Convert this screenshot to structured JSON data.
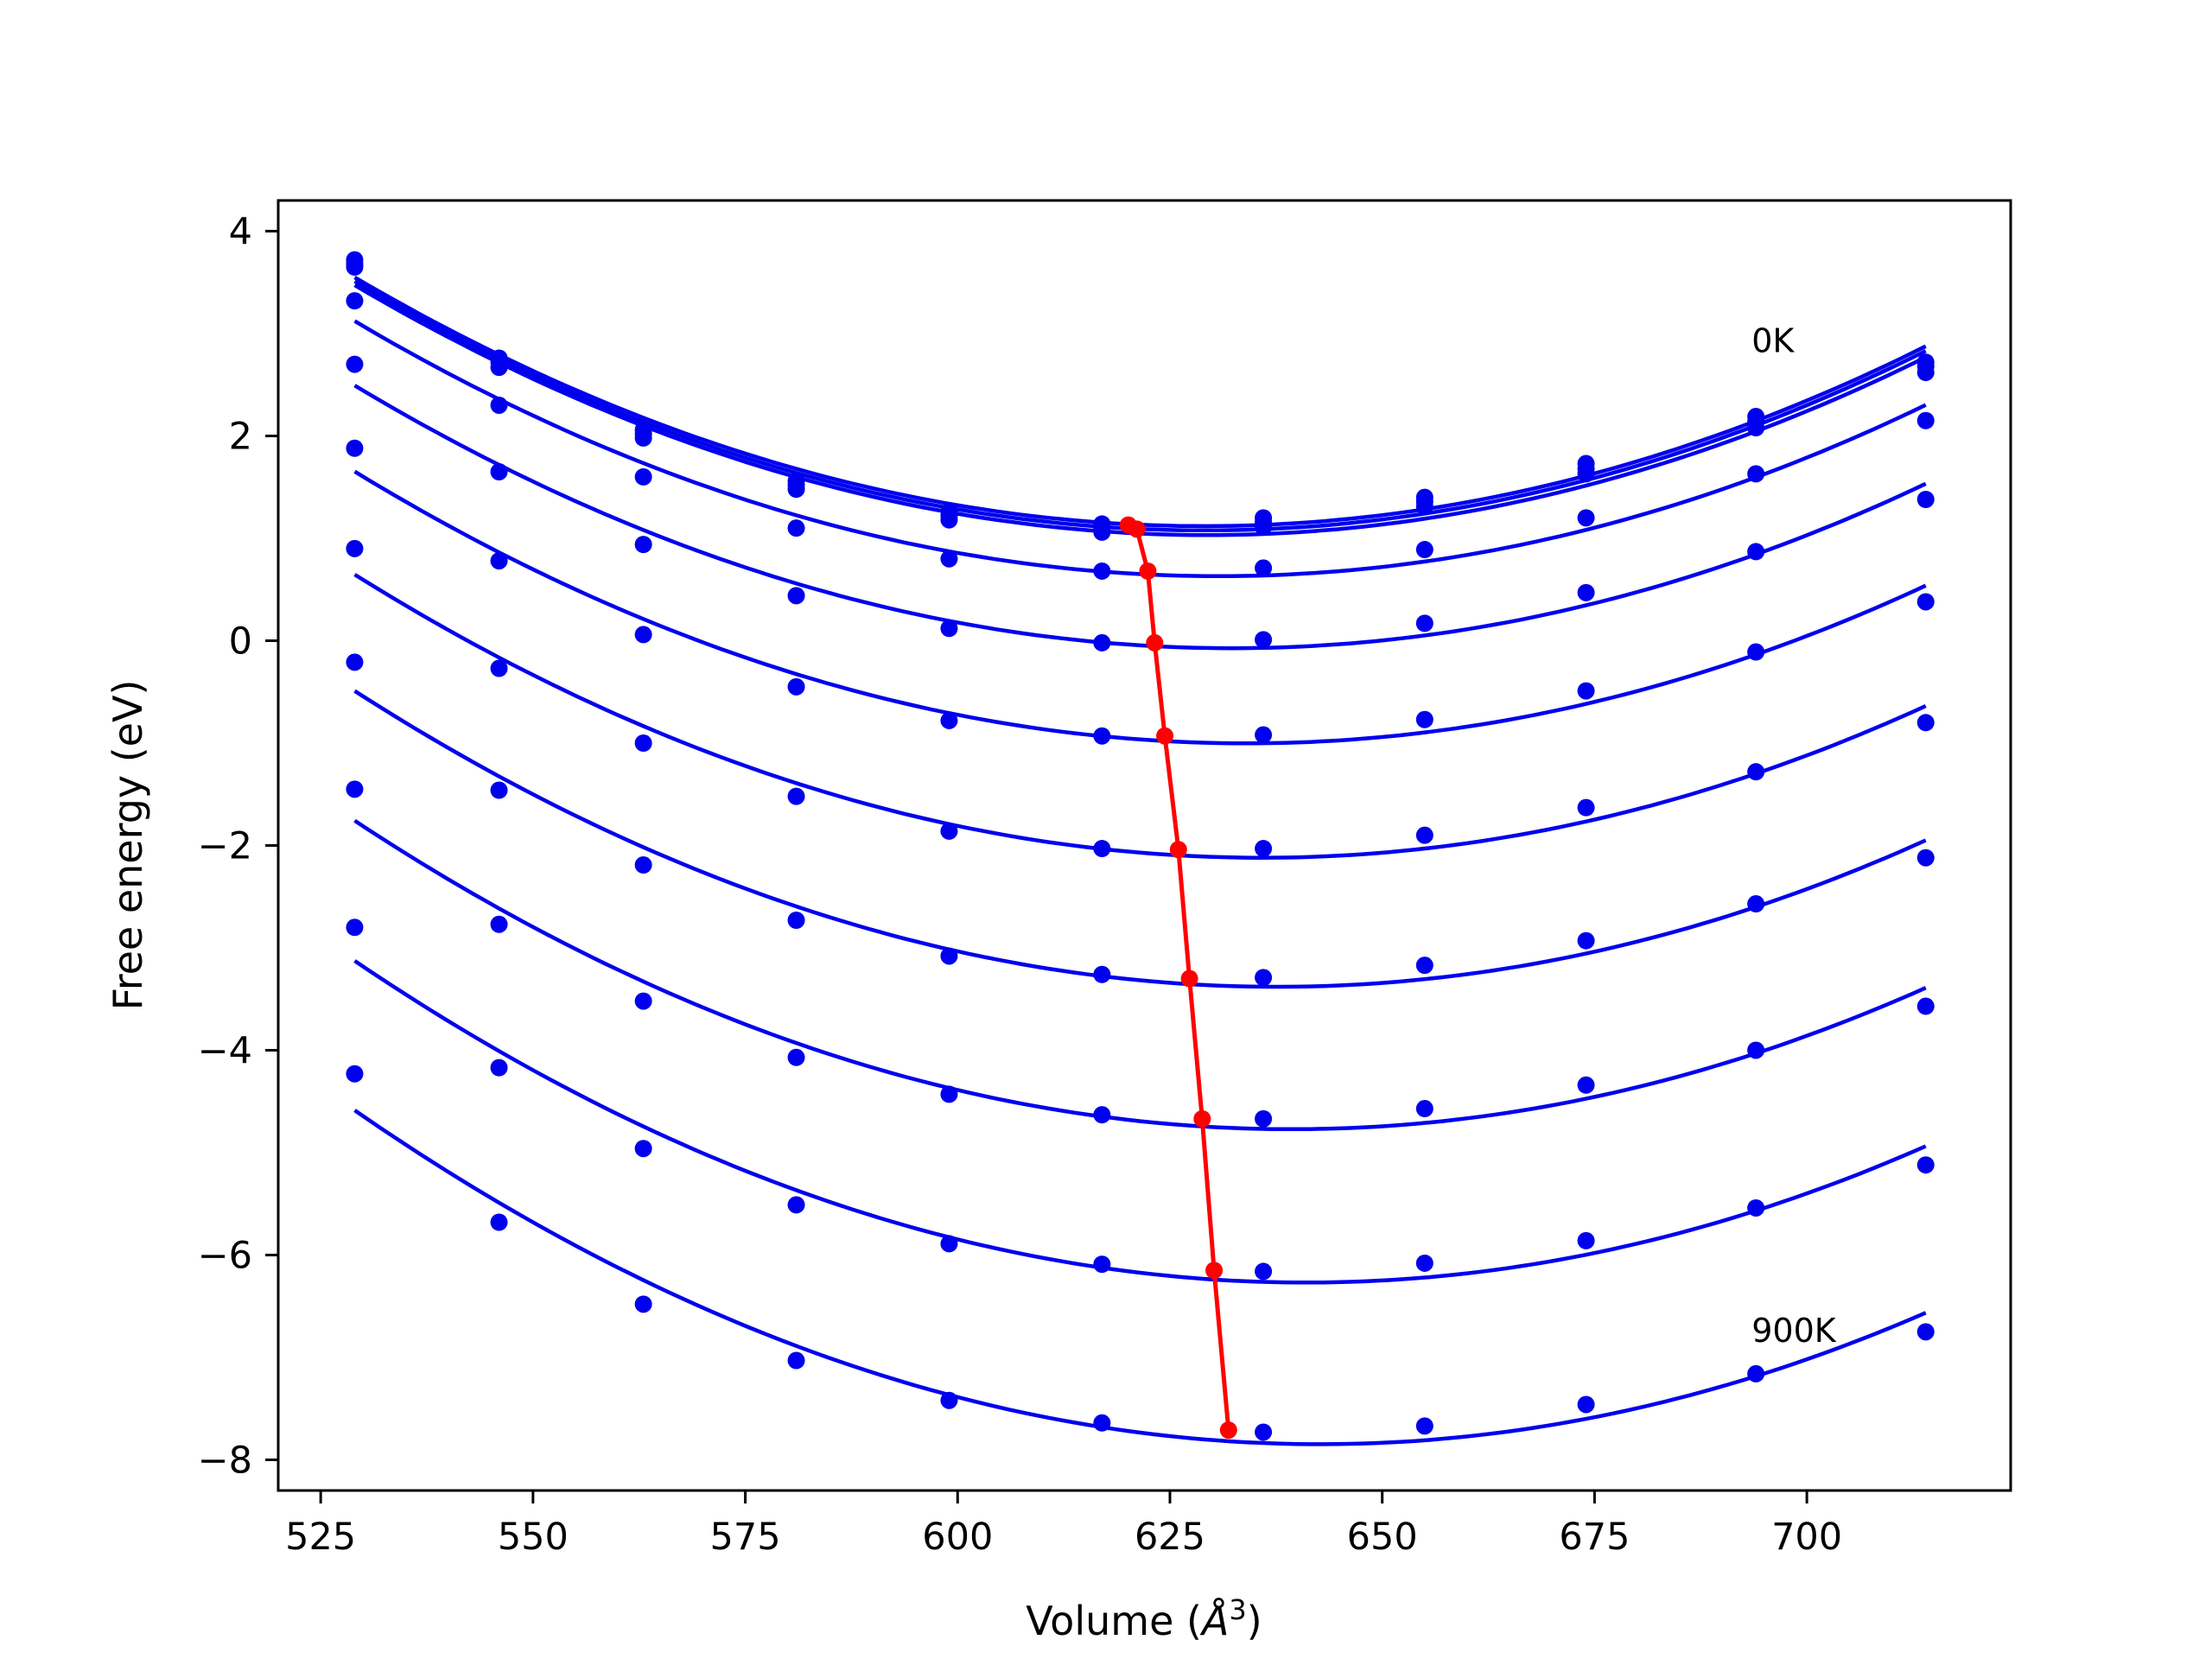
{
  "chart_data": {
    "type": "line",
    "xlabel_text": "Volume (",
    "xlabel_unit": "Å",
    "xlabel_exp": "3",
    "xlabel_close": ")",
    "ylabel": "Free energy (eV)",
    "xlim": [
      520,
      724
    ],
    "ylim": [
      -8.3,
      4.3
    ],
    "xticks": [
      525,
      550,
      575,
      600,
      625,
      650,
      675,
      700
    ],
    "yticks": [
      4,
      2,
      0,
      -2,
      -4,
      -6,
      -8
    ],
    "ytick_labels": [
      "4",
      "2",
      "0",
      "−2",
      "−4",
      "−6",
      "−8"
    ],
    "grid": false,
    "legend": "none",
    "colors": {
      "series": "#0000ee",
      "equilibrium": "#ff0000"
    },
    "x": [
      529,
      546,
      563,
      581,
      599,
      617,
      636,
      655,
      674,
      694,
      714
    ],
    "series": [
      {
        "values": [
          3.72,
          2.76,
          2.06,
          1.56,
          1.26,
          1.14,
          1.2,
          1.4,
          1.73,
          2.19,
          2.72
        ]
      },
      {
        "values": [
          3.68,
          2.72,
          2.02,
          1.52,
          1.22,
          1.1,
          1.16,
          1.36,
          1.68,
          2.14,
          2.68
        ]
      },
      {
        "values": [
          3.65,
          2.67,
          1.98,
          1.48,
          1.18,
          1.06,
          1.11,
          1.31,
          1.63,
          2.08,
          2.62
        ]
      },
      {
        "values": [
          3.32,
          2.3,
          1.6,
          1.1,
          0.8,
          0.68,
          0.71,
          0.89,
          1.2,
          1.63,
          2.15
        ]
      },
      {
        "values": [
          2.7,
          1.65,
          0.94,
          0.44,
          0.12,
          -0.02,
          0.01,
          0.17,
          0.47,
          0.87,
          1.38
        ]
      },
      {
        "values": [
          1.88,
          0.78,
          0.06,
          -0.45,
          -0.78,
          -0.93,
          -0.92,
          -0.77,
          -0.49,
          -0.11,
          0.38
        ]
      },
      {
        "values": [
          0.9,
          -0.27,
          -1.0,
          -1.52,
          -1.86,
          -2.03,
          -2.03,
          -1.9,
          -1.63,
          -1.28,
          -0.8
        ]
      },
      {
        "values": [
          -0.21,
          -1.46,
          -2.19,
          -2.73,
          -3.08,
          -3.26,
          -3.29,
          -3.17,
          -2.93,
          -2.57,
          -2.12
        ]
      },
      {
        "values": [
          -1.45,
          -2.77,
          -3.52,
          -4.07,
          -4.43,
          -4.63,
          -4.67,
          -4.57,
          -4.34,
          -4.0,
          -3.57
        ]
      },
      {
        "values": [
          -2.8,
          -4.17,
          -4.96,
          -5.51,
          -5.89,
          -6.09,
          -6.16,
          -6.08,
          -5.86,
          -5.54,
          -5.12
        ]
      },
      {
        "values": [
          -4.23,
          -5.68,
          -6.48,
          -7.03,
          -7.42,
          -7.64,
          -7.73,
          -7.67,
          -7.46,
          -7.16,
          -6.75
        ]
      }
    ],
    "equilibrium": {
      "x": [
        620.1,
        621.1,
        622.4,
        623.2,
        624.4,
        626.0,
        627.3,
        628.8,
        630.2,
        631.9
      ],
      "y": [
        1.13,
        1.09,
        0.68,
        -0.02,
        -0.93,
        -2.04,
        -3.3,
        -4.67,
        -6.15,
        -7.71
      ]
    },
    "annotations": [
      {
        "text": "0K",
        "x": 693.5,
        "y": 2.82
      },
      {
        "text": "900K",
        "x": 693.5,
        "y": -6.85
      }
    ]
  }
}
